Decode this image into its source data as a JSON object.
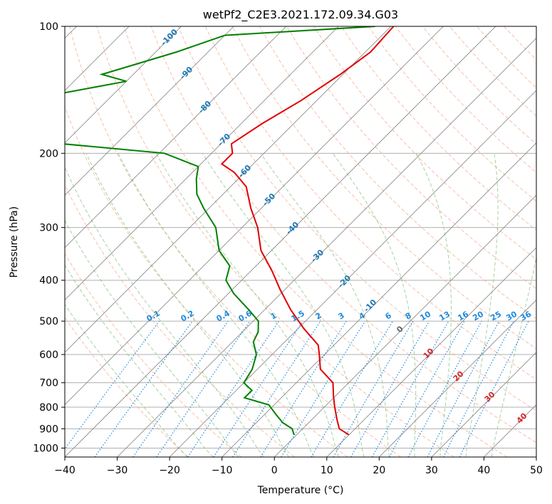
{
  "chart_data": {
    "type": "line",
    "title": "wetPf2_C2E3.2021.172.09.34.G03",
    "xlabel": "Temperature (°C)",
    "ylabel": "Pressure (hPa)",
    "xlim": [
      -40,
      50
    ],
    "ylim": [
      1050,
      100
    ],
    "y_scale": "log",
    "grid": true,
    "x_ticks": [
      "−40",
      "−30",
      "−20",
      "−10",
      "0",
      "10",
      "20",
      "30",
      "40",
      "50"
    ],
    "y_ticks": [
      "100",
      "200",
      "300",
      "400",
      "500",
      "600",
      "700",
      "800",
      "900",
      "1000"
    ],
    "series": [
      {
        "color": "#e00000",
        "points": [
          [
            100,
            -59.5
          ],
          [
            115,
            -59
          ],
          [
            130,
            -60.5
          ],
          [
            150,
            -63
          ],
          [
            170,
            -66
          ],
          [
            190,
            -68
          ],
          [
            200,
            -66
          ],
          [
            212,
            -66
          ],
          [
            222,
            -62
          ],
          [
            240,
            -57
          ],
          [
            270,
            -52
          ],
          [
            300,
            -47
          ],
          [
            340,
            -42
          ],
          [
            380,
            -36
          ],
          [
            420,
            -31
          ],
          [
            470,
            -25
          ],
          [
            520,
            -19
          ],
          [
            570,
            -13
          ],
          [
            600,
            -11
          ],
          [
            650,
            -8
          ],
          [
            700,
            -3
          ],
          [
            750,
            -0.5
          ],
          [
            800,
            2
          ],
          [
            860,
            5
          ],
          [
            900,
            7
          ],
          [
            930,
            10
          ]
        ]
      },
      {
        "color": "#008000",
        "points": [
          [
            100,
            -63
          ],
          [
            105,
            -90
          ],
          [
            115,
            -96
          ],
          [
            130,
            -106
          ],
          [
            135,
            -100
          ],
          [
            145,
            -111
          ],
          [
            160,
            -113
          ],
          [
            168,
            -108
          ],
          [
            185,
            -111
          ],
          [
            200,
            -79
          ],
          [
            215,
            -70
          ],
          [
            230,
            -68
          ],
          [
            250,
            -65
          ],
          [
            270,
            -61
          ],
          [
            300,
            -55
          ],
          [
            340,
            -50
          ],
          [
            370,
            -45
          ],
          [
            400,
            -43
          ],
          [
            430,
            -39
          ],
          [
            470,
            -33
          ],
          [
            500,
            -29
          ],
          [
            530,
            -27
          ],
          [
            560,
            -26
          ],
          [
            600,
            -23
          ],
          [
            650,
            -21
          ],
          [
            700,
            -20
          ],
          [
            730,
            -17
          ],
          [
            760,
            -17
          ],
          [
            790,
            -11
          ],
          [
            830,
            -8
          ],
          [
            870,
            -5
          ],
          [
            900,
            -2
          ],
          [
            930,
            -0.5
          ]
        ]
      }
    ],
    "mixing_ratio_labels": [
      "0.1",
      "0.2",
      "0.4",
      "0.6",
      "1",
      "1.5",
      "2",
      "3",
      "4",
      "6",
      "8",
      "10",
      "13",
      "16",
      "20",
      "25",
      "30",
      "36"
    ],
    "isotherm_labels": [
      "-100",
      "-90",
      "-80",
      "-70",
      "-60",
      "-50",
      "-40",
      "-30",
      "-20",
      "-10",
      "0",
      "10",
      "20",
      "30",
      "40"
    ],
    "colors": {
      "temperature": "#e00000",
      "dewpoint": "#008000",
      "dry_adiabat": "#f4a582",
      "moist_adiabat": "#7fbf7b",
      "mixing_ratio": "#1f8ae0",
      "isotherm": "#808080",
      "isotherm_label_cold": "#1f77b4",
      "isotherm_label_zero": "#666666",
      "isotherm_label_warm": "#d62728"
    }
  }
}
